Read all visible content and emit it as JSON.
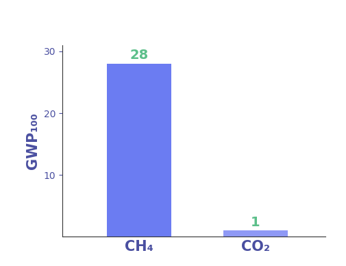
{
  "chart_data": {
    "type": "bar",
    "y_label": "GWP₁₀₀",
    "categories": [
      "CH₄",
      "CO₂"
    ],
    "values": [
      28,
      1
    ],
    "colors": [
      "#6b7cf2",
      "#8f99f5"
    ],
    "ylim": [
      0,
      31
    ],
    "yticks": [
      10,
      20,
      30
    ],
    "grid": false,
    "data_labels": true
  }
}
